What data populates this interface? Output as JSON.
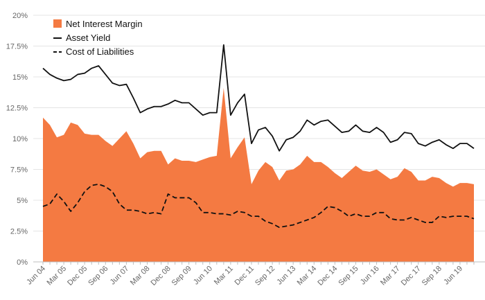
{
  "chart_data": {
    "type": "line",
    "title": "",
    "xlabel": "",
    "ylabel": "",
    "ylim": [
      0,
      20
    ],
    "yticks": [
      0,
      2.5,
      5,
      7.5,
      10,
      12.5,
      15,
      17.5,
      20
    ],
    "ytick_labels": [
      "0%",
      "2.5%",
      "5%",
      "7.5%",
      "10%",
      "12.5%",
      "15%",
      "17.5%",
      "20%"
    ],
    "x_start_quarter": "Jun 04",
    "xtick_labels": [
      {
        "index": 0,
        "label": "Jun 04"
      },
      {
        "index": 3,
        "label": "Mar 05"
      },
      {
        "index": 6,
        "label": "Dec 05"
      },
      {
        "index": 9,
        "label": "Sep 06"
      },
      {
        "index": 12,
        "label": "Jun 07"
      },
      {
        "index": 15,
        "label": "Mar 08"
      },
      {
        "index": 18,
        "label": "Dec 08"
      },
      {
        "index": 21,
        "label": "Sep 09"
      },
      {
        "index": 24,
        "label": "Jun 10"
      },
      {
        "index": 27,
        "label": "Mar 11"
      },
      {
        "index": 30,
        "label": "Dec 11"
      },
      {
        "index": 33,
        "label": "Sep 12"
      },
      {
        "index": 36,
        "label": "Jun 13"
      },
      {
        "index": 39,
        "label": "Mar 14"
      },
      {
        "index": 42,
        "label": "Dec 14"
      },
      {
        "index": 45,
        "label": "Sep 15"
      },
      {
        "index": 48,
        "label": "Jun 16"
      },
      {
        "index": 51,
        "label": "Mar 17"
      },
      {
        "index": 54,
        "label": "Dec 17"
      },
      {
        "index": 57,
        "label": "Sep 18"
      },
      {
        "index": 60,
        "label": "Jun 19"
      }
    ],
    "legend_position": "top-left",
    "series": [
      {
        "name": "Net Interest Margin",
        "style": "area",
        "color": "#f47a42",
        "values": [
          11.7,
          11.1,
          10.1,
          10.3,
          11.3,
          11.1,
          10.4,
          10.3,
          10.3,
          9.8,
          9.4,
          10.0,
          10.6,
          9.6,
          8.4,
          8.9,
          9.0,
          9.0,
          7.9,
          8.4,
          8.2,
          8.2,
          8.1,
          8.3,
          8.5,
          8.6,
          14.1,
          8.4,
          9.3,
          10.1,
          6.3,
          7.4,
          8.1,
          7.7,
          6.6,
          7.4,
          7.5,
          7.9,
          8.6,
          8.1,
          8.1,
          7.7,
          7.2,
          6.8,
          7.3,
          7.8,
          7.4,
          7.3,
          7.5,
          7.1,
          6.7,
          6.9,
          7.6,
          7.3,
          6.6,
          6.6,
          6.9,
          6.8,
          6.4,
          6.1,
          6.4,
          6.4,
          6.3
        ]
      },
      {
        "name": "Asset Yield",
        "style": "solid",
        "color": "#111111",
        "values": [
          15.7,
          15.2,
          14.9,
          14.7,
          14.8,
          15.2,
          15.3,
          15.7,
          15.9,
          15.2,
          14.5,
          14.3,
          14.4,
          13.3,
          12.1,
          12.4,
          12.6,
          12.6,
          12.8,
          13.1,
          12.9,
          12.9,
          12.4,
          11.9,
          12.1,
          12.1,
          17.6,
          11.9,
          12.9,
          13.6,
          9.6,
          10.7,
          10.9,
          10.2,
          9.0,
          9.9,
          10.1,
          10.6,
          11.5,
          11.1,
          11.4,
          11.5,
          11.0,
          10.5,
          10.6,
          11.1,
          10.6,
          10.5,
          10.9,
          10.5,
          9.7,
          9.9,
          10.5,
          10.4,
          9.6,
          9.4,
          9.7,
          9.9,
          9.5,
          9.2,
          9.6,
          9.6,
          9.2
        ]
      },
      {
        "name": "Cost of Liabilities",
        "style": "dashed",
        "color": "#111111",
        "values": [
          4.5,
          4.7,
          5.5,
          4.9,
          4.1,
          4.8,
          5.7,
          6.2,
          6.3,
          6.1,
          5.7,
          4.7,
          4.2,
          4.2,
          4.1,
          3.9,
          4.0,
          3.9,
          5.5,
          5.2,
          5.2,
          5.2,
          4.8,
          4.0,
          4.0,
          3.9,
          3.9,
          3.8,
          4.1,
          4.0,
          3.7,
          3.7,
          3.3,
          3.1,
          2.8,
          2.9,
          3.0,
          3.2,
          3.4,
          3.6,
          4.0,
          4.5,
          4.4,
          4.1,
          3.7,
          3.9,
          3.7,
          3.7,
          4.0,
          4.0,
          3.5,
          3.4,
          3.4,
          3.6,
          3.4,
          3.2,
          3.2,
          3.7,
          3.6,
          3.7,
          3.7,
          3.7,
          3.5
        ]
      }
    ]
  }
}
